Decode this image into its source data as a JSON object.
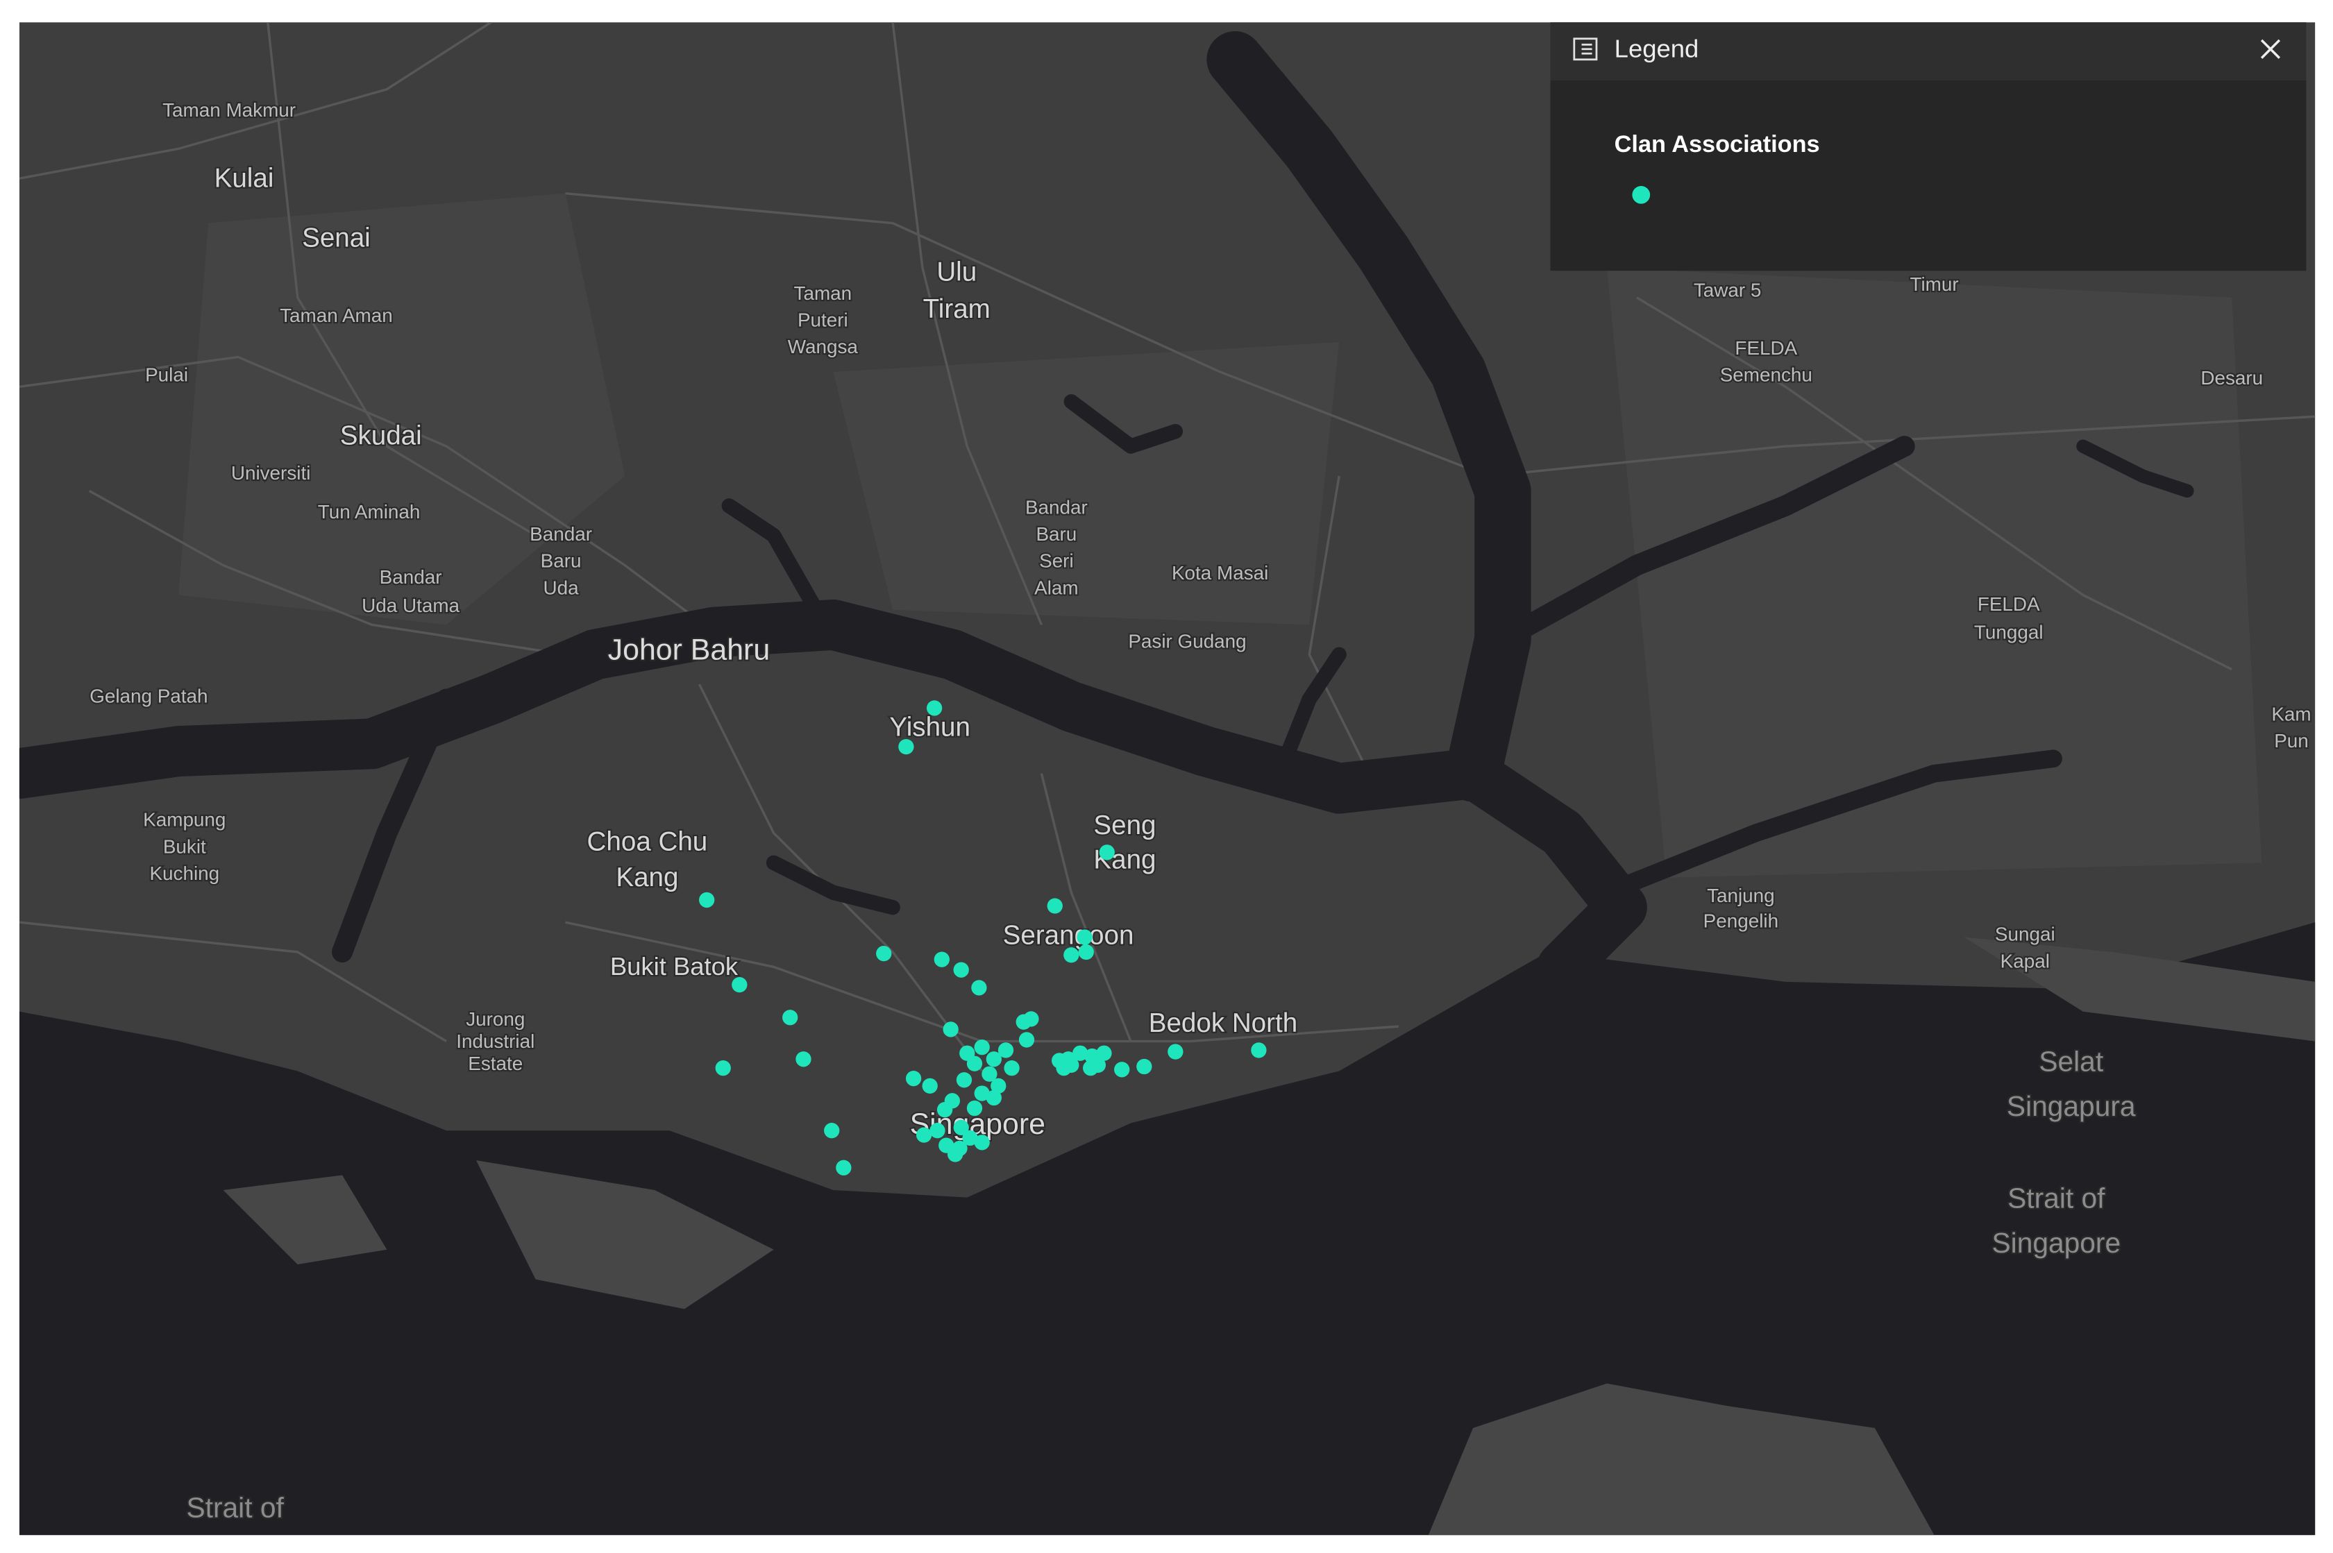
{
  "legend": {
    "title": "Legend",
    "layer": "Clan Associations"
  },
  "labels": [
    [
      "Taman Makmur"
    ],
    [
      "Kulai"
    ],
    [
      "Senai"
    ],
    [
      "Taman Aman"
    ],
    [
      "Pulai"
    ],
    [
      "Skudai"
    ],
    [
      "Universiti"
    ],
    [
      "Tun Aminah"
    ],
    [
      "Bandar",
      "Baru",
      "Uda"
    ],
    [
      "Bandar",
      "Uda Utama"
    ],
    [
      "Gelang Patah"
    ],
    [
      "Johor Bahru"
    ],
    [
      "Taman",
      "Puteri",
      "Wangsa"
    ],
    [
      "Ulu",
      "Tiram"
    ],
    [
      "Bandar",
      "Baru",
      "Seri",
      "Alam"
    ],
    [
      "Kota Masai"
    ],
    [
      "Pasir Gudang"
    ],
    [
      "Yishun"
    ],
    [
      "Seng",
      "Kang"
    ],
    [
      "Choa Chu",
      "Kang"
    ],
    [
      "Serangoon"
    ],
    [
      "Bukit Batok"
    ],
    [
      "Jurong",
      "Industrial",
      "Estate"
    ],
    [
      "Bedok North"
    ],
    [
      "Singapore"
    ],
    [
      "Kampung",
      "Bukit",
      "Kuching"
    ],
    [
      "Tanjung",
      "Pengelih"
    ],
    [
      "Sungai",
      "Kapal"
    ],
    [
      "Selat",
      "Singapura"
    ],
    [
      "Strait of",
      "Singapore"
    ],
    [
      "Strait of"
    ],
    [
      "FELDA",
      "Tunggal"
    ],
    [
      "FELDA",
      "Semenchu"
    ],
    [
      "Desaru"
    ],
    [
      "Tawar 5"
    ],
    [
      "Timur"
    ],
    [
      "Kam",
      "Pun"
    ]
  ]
}
